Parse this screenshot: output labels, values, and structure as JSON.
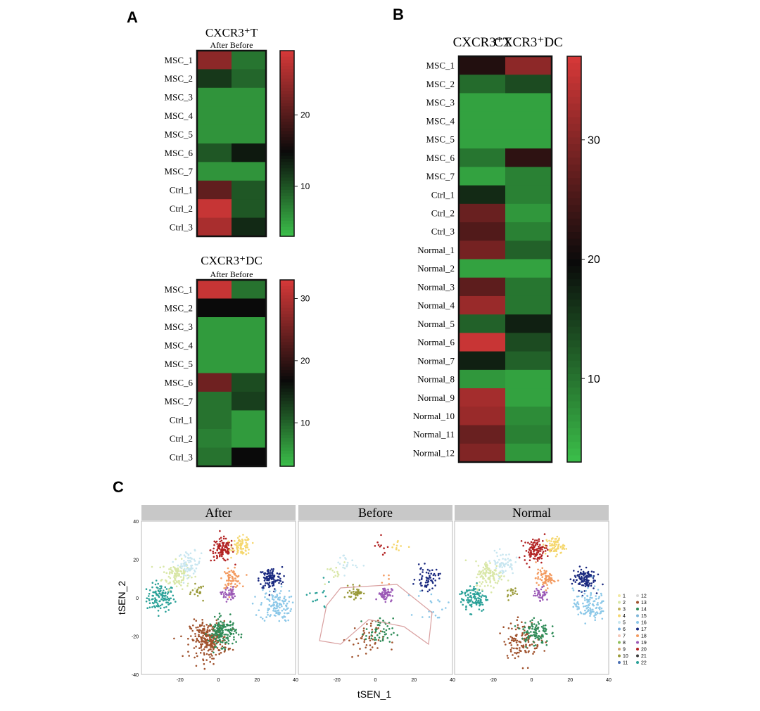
{
  "panel_letters": {
    "a": "A",
    "b": "B",
    "c": "C"
  },
  "colors": {
    "low": "#3cc24b",
    "mid": "#0a0a0a",
    "high": "#d43838",
    "strip_bg": "#c8c8c8",
    "frame": "#111111"
  },
  "chart_data": [
    {
      "type": "heatmap",
      "title": "CXCR3⁺T",
      "columns": [
        "After",
        "Before"
      ],
      "columns_label": "After Before",
      "rows": [
        "MSC_1",
        "MSC_2",
        "MSC_3",
        "MSC_4",
        "MSC_5",
        "MSC_6",
        "MSC_7",
        "Ctrl_1",
        "Ctrl_2",
        "Ctrl_3"
      ],
      "values": [
        [
          24,
          8
        ],
        [
          12,
          9
        ],
        [
          6,
          6
        ],
        [
          6,
          6
        ],
        [
          6,
          6
        ],
        [
          10,
          14
        ],
        [
          6,
          6
        ],
        [
          21,
          10
        ],
        [
          28,
          10
        ],
        [
          26,
          13
        ]
      ],
      "colorbar": {
        "min": 3,
        "mid": 15,
        "max": 29,
        "ticks": [
          10,
          20
        ]
      }
    },
    {
      "type": "heatmap",
      "title": "CXCR3⁺DC",
      "columns": [
        "After",
        "Before"
      ],
      "columns_label": "After Before",
      "rows": [
        "MSC_1",
        "MSC_2",
        "MSC_3",
        "MSC_4",
        "MSC_5",
        "MSC_6",
        "MSC_7",
        "Ctrl_1",
        "Ctrl_2",
        "Ctrl_3"
      ],
      "values": [
        [
          32,
          9
        ],
        [
          17,
          17
        ],
        [
          6,
          6
        ],
        [
          6,
          6
        ],
        [
          6,
          6
        ],
        [
          25,
          12
        ],
        [
          9,
          13
        ],
        [
          9,
          6
        ],
        [
          8,
          6
        ],
        [
          9,
          17
        ]
      ],
      "colorbar": {
        "min": 3,
        "mid": 17,
        "max": 33,
        "ticks": [
          10,
          20,
          30
        ]
      }
    },
    {
      "type": "heatmap",
      "columns": [
        "CXCR3⁺T",
        "CXCR3⁺DC"
      ],
      "rows": [
        "MSC_1",
        "MSC_2",
        "MSC_3",
        "MSC_4",
        "MSC_5",
        "MSC_6",
        "MSC_7",
        "Ctrl_1",
        "Ctrl_2",
        "Ctrl_3",
        "Normal_1",
        "Normal_2",
        "Normal_3",
        "Normal_4",
        "Normal_5",
        "Normal_6",
        "Normal_7",
        "Normal_8",
        "Normal_9",
        "Normal_10",
        "Normal_11",
        "Normal_12"
      ],
      "values": [
        [
          22,
          31
        ],
        [
          11,
          14
        ],
        [
          6,
          6
        ],
        [
          6,
          6
        ],
        [
          6,
          6
        ],
        [
          10,
          23
        ],
        [
          6,
          9
        ],
        [
          17,
          9
        ],
        [
          28,
          7
        ],
        [
          26,
          9
        ],
        [
          29,
          12
        ],
        [
          6,
          6
        ],
        [
          27,
          10
        ],
        [
          32,
          10
        ],
        [
          12,
          18
        ],
        [
          36,
          14
        ],
        [
          18,
          12
        ],
        [
          7,
          6
        ],
        [
          33,
          6
        ],
        [
          32,
          8
        ],
        [
          28,
          9
        ],
        [
          30,
          7
        ]
      ],
      "colorbar": {
        "min": 3,
        "mid": 20,
        "max": 37,
        "ticks": [
          10,
          20,
          30
        ]
      }
    },
    {
      "type": "scatter",
      "panels": [
        "After",
        "Before",
        "Normal"
      ],
      "xlabel": "tSEN_1",
      "ylabel": "tSEN_2",
      "xlim": [
        -40,
        40
      ],
      "ylim": [
        -40,
        40
      ],
      "xticks": [
        -20,
        0,
        20,
        40
      ],
      "yticks": [
        40,
        20,
        0,
        -20,
        -40
      ],
      "legend_placement": "right",
      "clusters": [
        {
          "label": "1",
          "color": "#f2e9a1"
        },
        {
          "label": "2",
          "color": "#d9e7a8"
        },
        {
          "label": "3",
          "color": "#c4b35c"
        },
        {
          "label": "4",
          "color": "#f5d76e"
        },
        {
          "label": "5",
          "color": "#c8e6f0"
        },
        {
          "label": "6",
          "color": "#6fa8dc"
        },
        {
          "label": "7",
          "color": "#f4c7b6"
        },
        {
          "label": "8",
          "color": "#8fbf5a"
        },
        {
          "label": "9",
          "color": "#d4a36a"
        },
        {
          "label": "10",
          "color": "#9a9a3a"
        },
        {
          "label": "11",
          "color": "#4b6fb3"
        },
        {
          "label": "12",
          "color": "#d7d7d7"
        },
        {
          "label": "13",
          "color": "#a0522d"
        },
        {
          "label": "14",
          "color": "#2e8b57"
        },
        {
          "label": "15",
          "color": "#7eb6d9"
        },
        {
          "label": "16",
          "color": "#8cc8e8"
        },
        {
          "label": "17",
          "color": "#1b2a80"
        },
        {
          "label": "18",
          "color": "#f39a5f"
        },
        {
          "label": "19",
          "color": "#9b59b6"
        },
        {
          "label": "20",
          "color": "#b22222"
        },
        {
          "label": "21",
          "color": "#3d3d3d"
        },
        {
          "label": "22",
          "color": "#2aa198"
        }
      ]
    }
  ]
}
